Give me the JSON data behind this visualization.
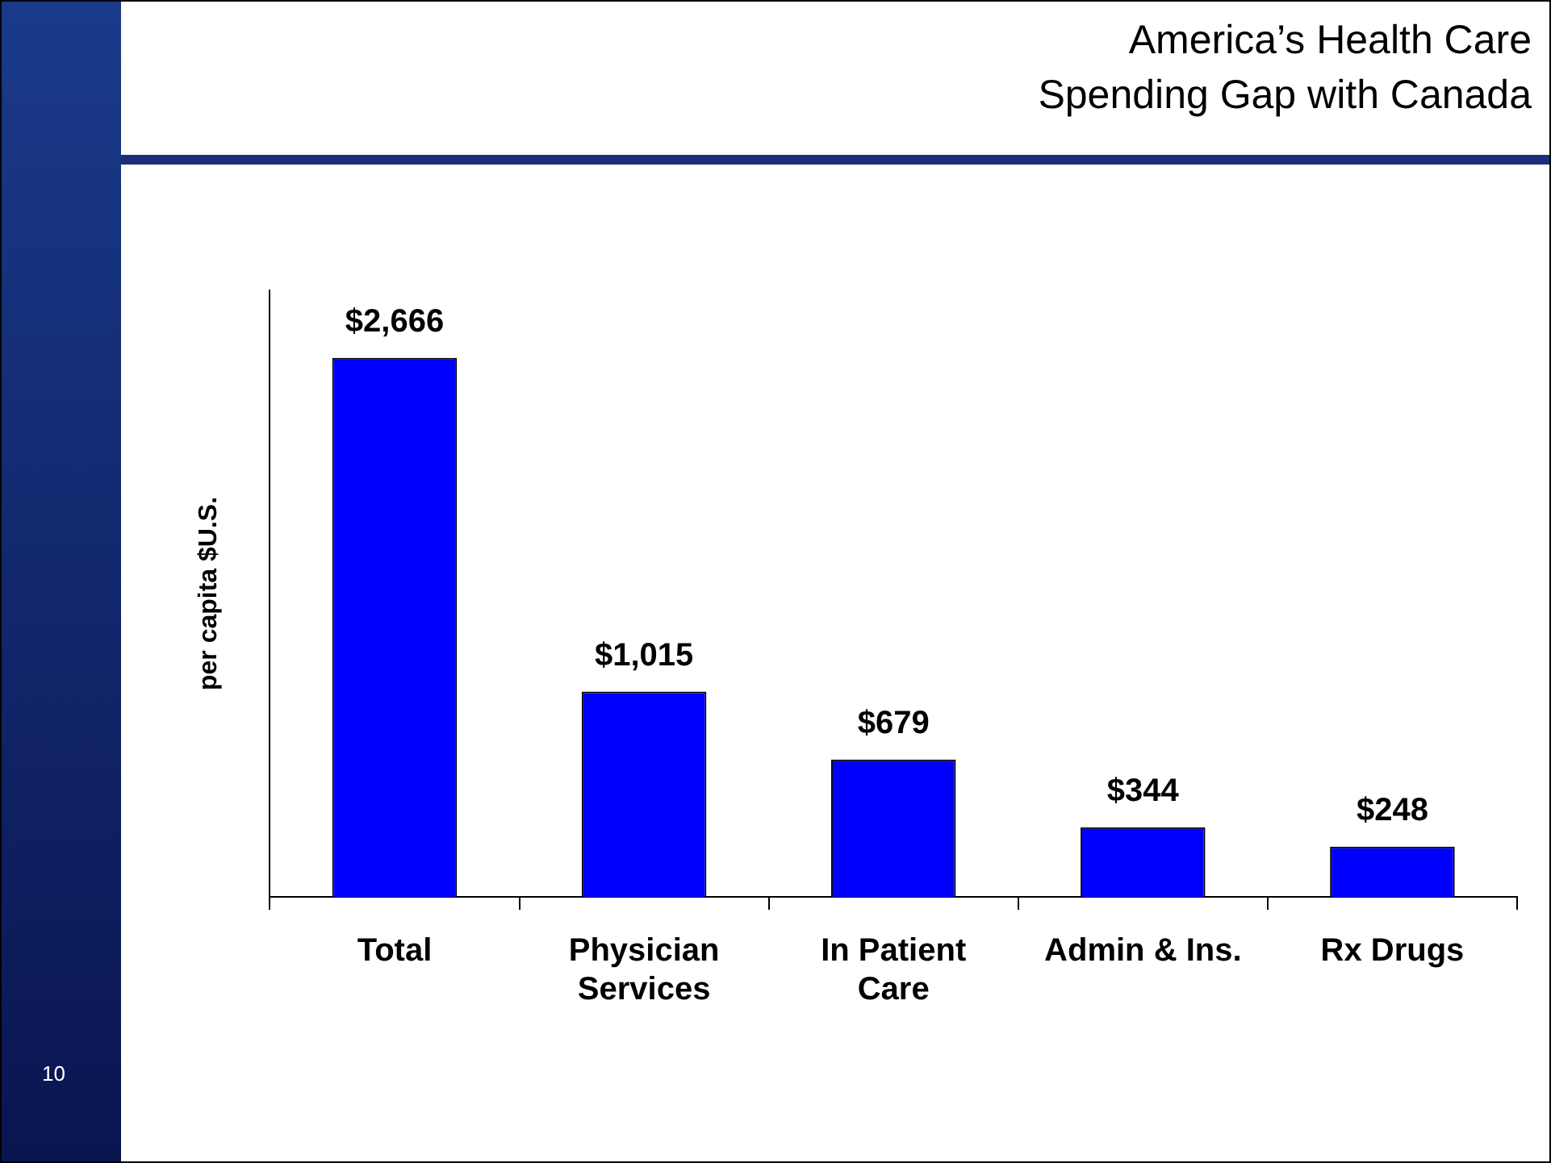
{
  "chart_data": {
    "type": "bar",
    "title": "America’s Health Care\nSpending Gap with Canada",
    "ylabel": "per capita $U.S.",
    "categories": [
      "Total",
      "Physician Services",
      "In Patient Care",
      "Admin & Ins.",
      "Rx Drugs"
    ],
    "values": [
      2666,
      1015,
      679,
      344,
      248
    ],
    "color": "#0000ff",
    "value_labels": [
      "$2,666",
      "$1,015",
      "$679",
      "$344",
      "$248"
    ],
    "annotations": [
      "10"
    ]
  }
}
